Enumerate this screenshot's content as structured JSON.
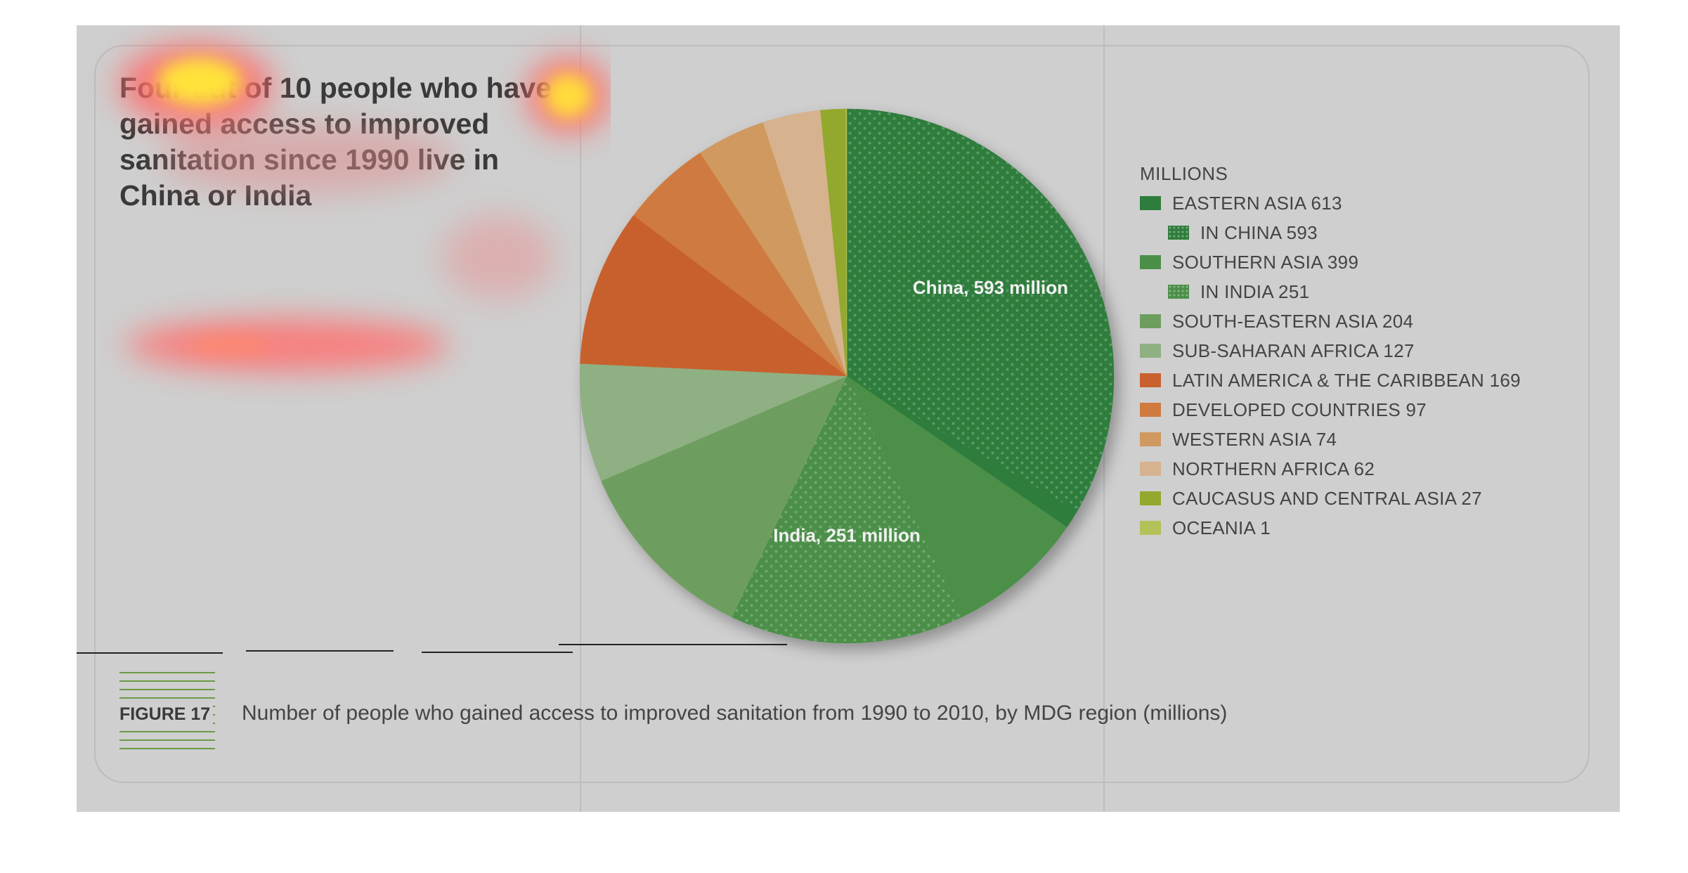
{
  "headline": "Four out of 10 people who have gained access to improved sanitation since 1990 live in China or India",
  "figure_label": "FIGURE 17",
  "caption": "Number of people who gained access to improved sanitation from 1990 to 2010, by MDG region (millions)",
  "chart_data": {
    "type": "pie",
    "legend_title": "MILLIONS",
    "legend_placement": "right",
    "slices": [
      {
        "label": "China",
        "value": 593,
        "color": "#2f7d3c",
        "dotted": true,
        "group": "EASTERN ASIA",
        "slice_label": "China, 593 million"
      },
      {
        "label": "Eastern Asia (rest)",
        "value": 20,
        "color": "#2f7d3c",
        "dotted": false,
        "group": "EASTERN ASIA"
      },
      {
        "label": "Southern Asia (rest)",
        "value": 148,
        "color": "#4b8f48",
        "dotted": false,
        "group": "SOUTHERN ASIA"
      },
      {
        "label": "India",
        "value": 251,
        "color": "#4b8f48",
        "dotted": true,
        "group": "SOUTHERN ASIA",
        "slice_label": "India, 251 million"
      },
      {
        "label": "South-Eastern Asia",
        "value": 204,
        "color": "#6e9e5e",
        "dotted": false
      },
      {
        "label": "Sub-Saharan Africa",
        "value": 127,
        "color": "#8fb082",
        "dotted": false
      },
      {
        "label": "Latin America & the Caribbean",
        "value": 169,
        "color": "#c8612e",
        "dotted": false
      },
      {
        "label": "Developed countries",
        "value": 97,
        "color": "#cf7a3f",
        "dotted": false
      },
      {
        "label": "Western Asia",
        "value": 74,
        "color": "#d0995f",
        "dotted": false
      },
      {
        "label": "Northern Africa",
        "value": 62,
        "color": "#d6b28e",
        "dotted": false
      },
      {
        "label": "Caucasus and Central Asia",
        "value": 27,
        "color": "#93a92e",
        "dotted": false
      },
      {
        "label": "Oceania",
        "value": 1,
        "color": "#b3c158",
        "dotted": false
      }
    ],
    "legend": [
      {
        "text": "EASTERN ASIA 613",
        "color": "#2f7d3c",
        "dotted": false,
        "sub": false
      },
      {
        "text": "IN CHINA 593",
        "color": "#2f7d3c",
        "dotted": true,
        "sub": true
      },
      {
        "text": "SOUTHERN ASIA 399",
        "color": "#4b8f48",
        "dotted": false,
        "sub": false
      },
      {
        "text": "IN INDIA 251",
        "color": "#4b8f48",
        "dotted": true,
        "sub": true
      },
      {
        "text": "SOUTH-EASTERN ASIA 204",
        "color": "#6e9e5e",
        "dotted": false,
        "sub": false
      },
      {
        "text": "SUB-SAHARAN AFRICA 127",
        "color": "#8fb082",
        "dotted": false,
        "sub": false
      },
      {
        "text": "LATIN AMERICA & THE CARIBBEAN 169",
        "color": "#c8612e",
        "dotted": false,
        "sub": false
      },
      {
        "text": "DEVELOPED COUNTRIES 97",
        "color": "#cf7a3f",
        "dotted": false,
        "sub": false
      },
      {
        "text": "WESTERN ASIA 74",
        "color": "#d0995f",
        "dotted": false,
        "sub": false
      },
      {
        "text": "NORTHERN AFRICA 62",
        "color": "#d6b28e",
        "dotted": false,
        "sub": false
      },
      {
        "text": "CAUCASUS AND CENTRAL ASIA 27",
        "color": "#93a92e",
        "dotted": false,
        "sub": false
      },
      {
        "text": "OCEANIA 1",
        "color": "#b3c158",
        "dotted": false,
        "sub": false
      }
    ]
  }
}
